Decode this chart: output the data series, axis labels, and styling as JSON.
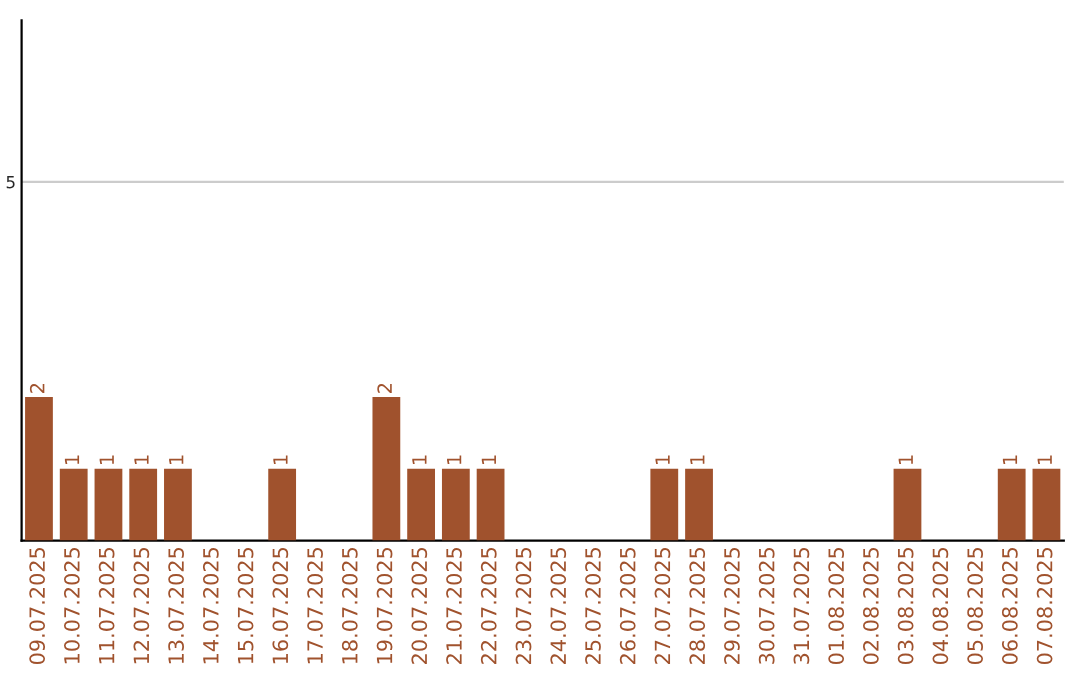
{
  "chart_data": {
    "type": "bar",
    "categories": [
      "09.07.2025",
      "10.07.2025",
      "11.07.2025",
      "12.07.2025",
      "13.07.2025",
      "14.07.2025",
      "15.07.2025",
      "16.07.2025",
      "17.07.2025",
      "18.07.2025",
      "19.07.2025",
      "20.07.2025",
      "21.07.2025",
      "22.07.2025",
      "23.07.2025",
      "24.07.2025",
      "25.07.2025",
      "26.07.2025",
      "27.07.2025",
      "28.07.2025",
      "29.07.2025",
      "30.07.2025",
      "31.07.2025",
      "01.08.2025",
      "02.08.2025",
      "03.08.2025",
      "04.08.2025",
      "05.08.2025",
      "06.08.2025",
      "07.08.2025"
    ],
    "values": [
      2,
      1,
      1,
      1,
      1,
      0,
      0,
      1,
      0,
      0,
      2,
      1,
      1,
      1,
      0,
      0,
      0,
      0,
      1,
      1,
      0,
      0,
      0,
      0,
      0,
      1,
      0,
      0,
      1,
      1
    ],
    "value_labels": [
      "2",
      "1",
      "1",
      "1",
      "1",
      null,
      null,
      "1",
      null,
      null,
      "2",
      "1",
      "1",
      "1",
      null,
      null,
      null,
      null,
      "1",
      "1",
      null,
      null,
      null,
      null,
      null,
      "1",
      null,
      null,
      "1",
      "1"
    ],
    "color": "#a0522d",
    "ylim": [
      0,
      7.25
    ],
    "yticks": [
      5
    ],
    "grid": "y"
  }
}
